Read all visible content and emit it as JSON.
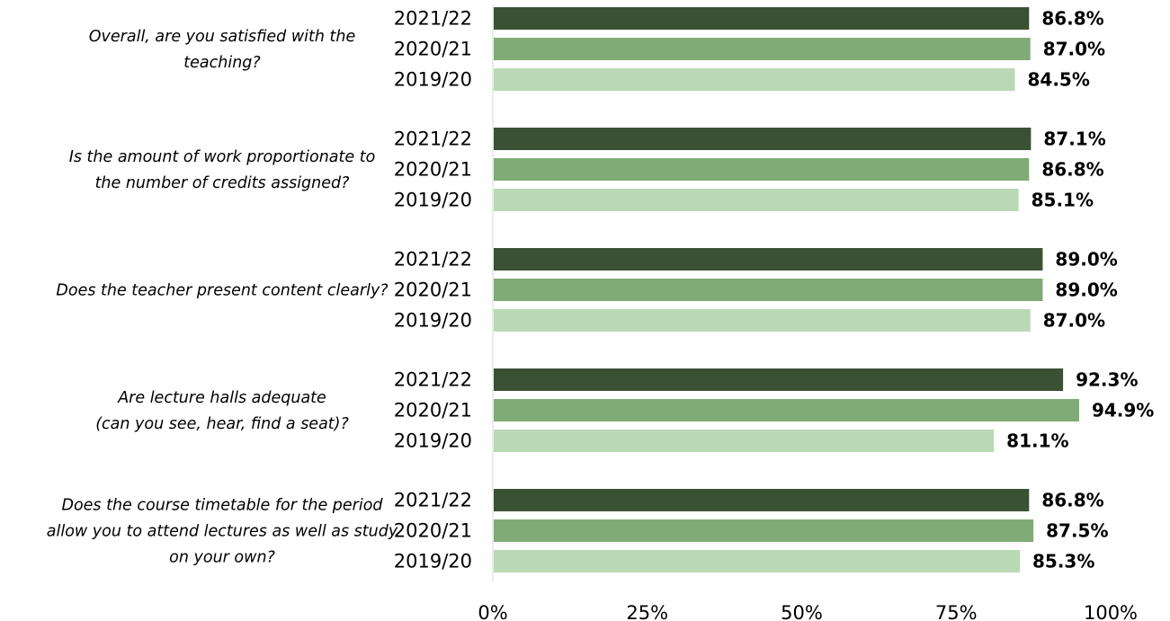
{
  "chart_data": {
    "type": "bar",
    "orientation": "horizontal",
    "title": "",
    "xlabel": "",
    "ylabel": "",
    "xlim": [
      0,
      100
    ],
    "x_ticks": [
      "0%",
      "25%",
      "50%",
      "75%",
      "100%"
    ],
    "grid": false,
    "legend": "none",
    "value_format": "percent",
    "groups": [
      {
        "label": "Overall, are you satisfied with the teaching?",
        "label_lines": [
          "Overall, are you satisfied with the",
          "teaching?"
        ],
        "bars": [
          {
            "series": "2021/22",
            "value": 86.8,
            "label": "86.8%"
          },
          {
            "series": "2020/21",
            "value": 87.0,
            "label": "87.0%"
          },
          {
            "series": "2019/20",
            "value": 84.5,
            "label": "84.5%"
          }
        ]
      },
      {
        "label": "Is the amount of work proportionate to the number of credits assigned?",
        "label_lines": [
          "Is the amount of work proportionate to",
          "the number of credits assigned?"
        ],
        "bars": [
          {
            "series": "2021/22",
            "value": 87.1,
            "label": "87.1%"
          },
          {
            "series": "2020/21",
            "value": 86.8,
            "label": "86.8%"
          },
          {
            "series": "2019/20",
            "value": 85.1,
            "label": "85.1%"
          }
        ]
      },
      {
        "label": "Does the teacher present content clearly?",
        "label_lines": [
          "Does the teacher present content clearly?"
        ],
        "bars": [
          {
            "series": "2021/22",
            "value": 89.0,
            "label": "89.0%"
          },
          {
            "series": "2020/21",
            "value": 89.0,
            "label": "89.0%"
          },
          {
            "series": "2019/20",
            "value": 87.0,
            "label": "87.0%"
          }
        ]
      },
      {
        "label": "Are lecture halls adequate (can you see, hear, find a seat)?",
        "label_lines": [
          "Are lecture halls adequate",
          "(can you see, hear, find a seat)?"
        ],
        "bars": [
          {
            "series": "2021/22",
            "value": 92.3,
            "label": "92.3%"
          },
          {
            "series": "2020/21",
            "value": 94.9,
            "label": "94.9%"
          },
          {
            "series": "2019/20",
            "value": 81.1,
            "label": "81.1%"
          }
        ]
      },
      {
        "label": "Does the course timetable for the period allow you to attend lectures as well as study on your own?",
        "label_lines": [
          "Does the course timetable for the period",
          "allow you to attend lectures as well as study",
          "on your own?"
        ],
        "bars": [
          {
            "series": "2021/22",
            "value": 86.8,
            "label": "86.8%"
          },
          {
            "series": "2020/21",
            "value": 87.5,
            "label": "87.5%"
          },
          {
            "series": "2019/20",
            "value": 85.3,
            "label": "85.3%"
          }
        ]
      }
    ],
    "series_colors": {
      "2021/22": "#3b5134",
      "2020/21": "#80ab77",
      "2019/20": "#b9d8b4"
    },
    "axis_color": "#d9d9d9"
  }
}
